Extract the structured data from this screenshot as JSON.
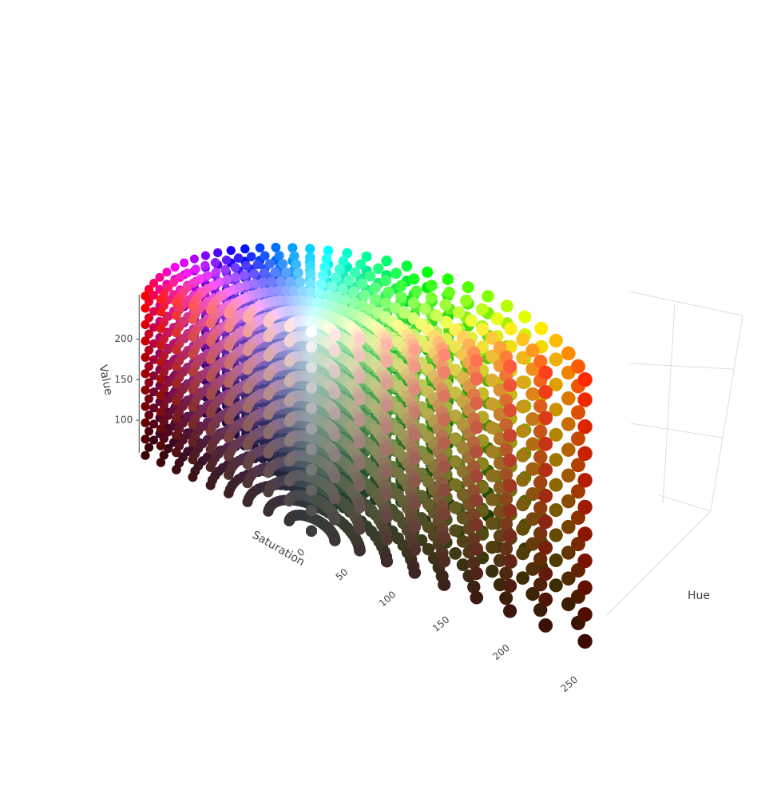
{
  "chart_data": {
    "type": "scatter3d",
    "xaxis_title": "Saturation",
    "yaxis_title": "Hue",
    "zaxis_title": "Value",
    "xlim": [
      0,
      255
    ],
    "xticks": [
      0,
      50,
      100,
      150,
      200,
      250
    ],
    "ylim": [
      0,
      255
    ],
    "zlim": [
      60,
      255
    ],
    "zticks": [
      100,
      150,
      200
    ],
    "hue_levels": [
      0,
      8,
      16,
      24,
      32,
      40,
      48,
      56,
      64,
      72,
      80,
      88,
      96,
      104,
      112,
      120,
      128,
      136,
      144,
      152,
      160,
      168,
      176,
      184,
      192,
      200,
      208,
      216,
      224,
      232,
      240,
      248
    ],
    "saturation_levels": [
      0,
      28,
      56,
      85,
      113,
      141,
      170,
      198,
      226,
      255
    ],
    "value_levels": [
      60,
      80,
      100,
      120,
      140,
      160,
      180,
      200,
      220,
      240,
      255
    ],
    "grid": true
  }
}
